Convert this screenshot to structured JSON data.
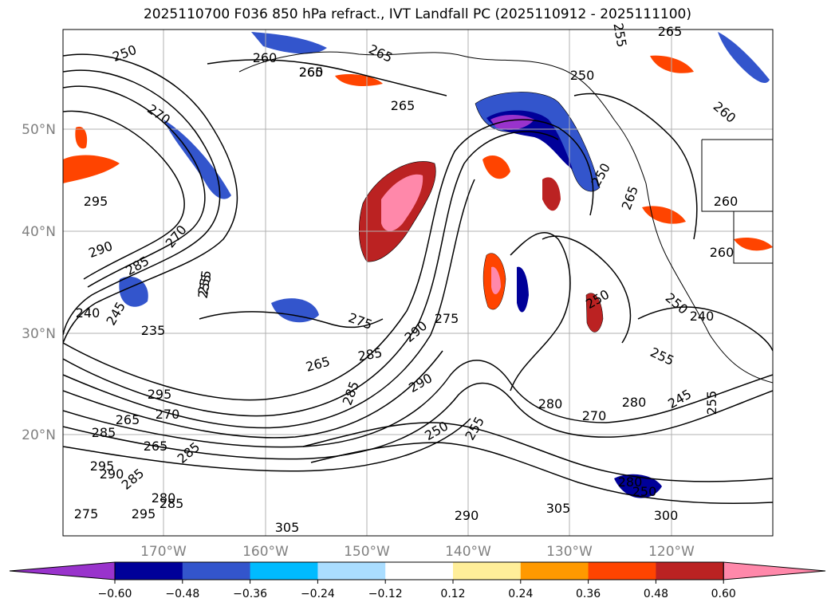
{
  "title": "2025110700 F036 850 hPa refract., IVT Landfall PC (2025110912 - 2025111100)",
  "lat_labels": [
    "50°N",
    "40°N",
    "30°N",
    "20°N"
  ],
  "lon_labels": [
    "170°W",
    "160°W",
    "150°W",
    "140°W",
    "130°W",
    "120°W"
  ],
  "colorbar": {
    "colors": [
      "#9933cc",
      "#000099",
      "#3355cc",
      "#00bbff",
      "#aaddff",
      "#ffffff",
      "#ffee99",
      "#ff9900",
      "#ff4400",
      "#bb2222",
      "#ff88aa"
    ],
    "tick_labels": [
      "−0.60",
      "−0.48",
      "−0.36",
      "−0.24",
      "−0.12",
      "0.12",
      "0.24",
      "0.36",
      "0.48",
      "0.60"
    ]
  },
  "contour_labels": [
    "250",
    "260",
    "265",
    "260",
    "265",
    "270",
    "265",
    "275",
    "255",
    "295",
    "290",
    "285",
    "270",
    "255",
    "245",
    "240",
    "235",
    "275",
    "265",
    "290",
    "285",
    "290",
    "285",
    "295",
    "265",
    "270",
    "265",
    "285",
    "285",
    "290",
    "295",
    "285",
    "280",
    "285",
    "275",
    "295",
    "305",
    "290",
    "305",
    "300",
    "250",
    "255",
    "280",
    "270",
    "280",
    "250",
    "255",
    "250",
    "240",
    "245",
    "265",
    "260",
    "260",
    "260",
    "250",
    "255",
    "265",
    "250",
    "255",
    "280",
    "250"
  ]
}
